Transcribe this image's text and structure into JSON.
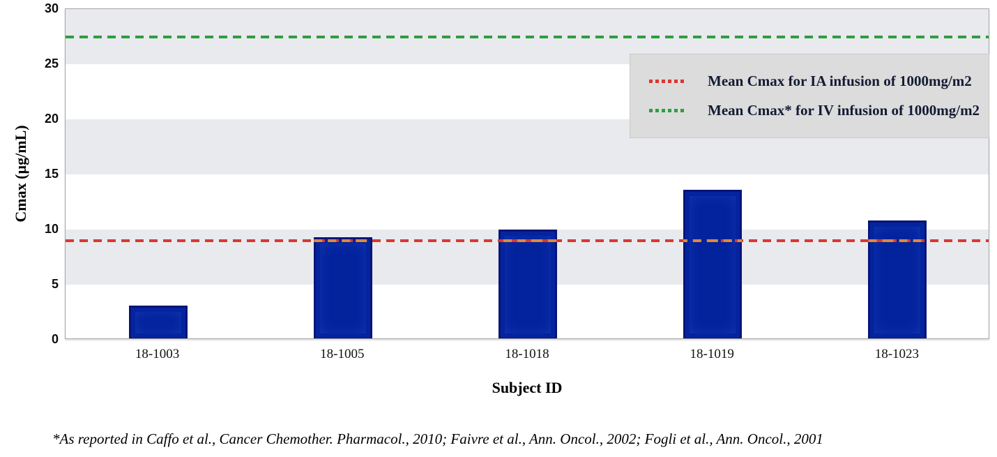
{
  "chart_data": {
    "type": "bar",
    "title": "",
    "categories": [
      "18-1003",
      "18-1005",
      "18-1018",
      "18-1019",
      "18-1023"
    ],
    "values": [
      3.1,
      9.3,
      10.0,
      13.6,
      10.8
    ],
    "xlabel": "Subject ID",
    "ylabel": "Cmax (µg/mL)",
    "ylim": [
      0,
      30
    ],
    "yticks": [
      0,
      5,
      10,
      15,
      20,
      25,
      30
    ],
    "grid": "alternating horizontal shaded bands on 5-10, 15-20, 25-30",
    "legend_position": "top-right inside plot",
    "bar_color": "#02239c",
    "reference_lines": [
      {
        "label": "Mean Cmax for IA infusion of 1000mg/m2",
        "value": 9.0,
        "color": "#d93831",
        "style": "dashed"
      },
      {
        "label": "Mean Cmax* for IV infusion of 1000mg/m2",
        "value": 27.5,
        "color": "#2f9e41",
        "style": "dashed"
      }
    ]
  },
  "footnote": "*As reported in Caffo et al., Cancer Chemother. Pharmacol., 2010; Faivre et al., Ann. Oncol., 2002; Fogli et al., Ann. Oncol., 2001",
  "colors": {
    "bar_fill": "#02239c",
    "bar_border": "#0a1478",
    "band_gray": "#e8eaee",
    "legend_bg": "#dcdcdc",
    "legend_text": "#131b33",
    "ia_line": "#d93831",
    "iv_line": "#2f9e41",
    "ia_line_over_bar": "#dd8a3c",
    "plot_border": "#a5a5a5"
  }
}
